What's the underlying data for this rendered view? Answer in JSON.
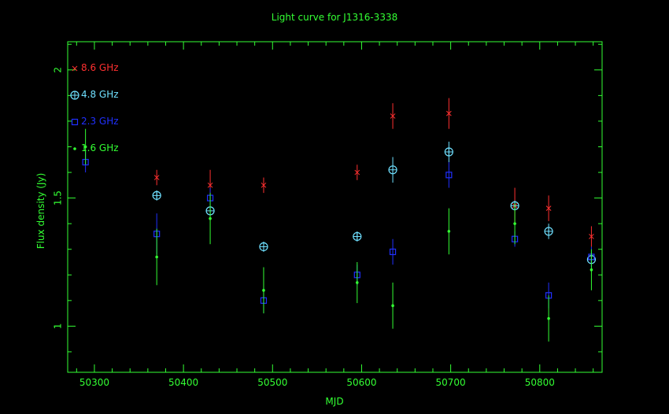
{
  "chart_data": {
    "type": "scatter",
    "title": "Light curve for J1316-3338",
    "xlabel": "MJD",
    "ylabel": "Flux density (Jy)",
    "xlim": [
      50270,
      50870
    ],
    "ylim": [
      0.82,
      2.11
    ],
    "x_ticks_major": [
      50300,
      50400,
      50500,
      50600,
      50700,
      50800
    ],
    "y_ticks_major": [
      1,
      1.5,
      2
    ],
    "x_tick_labels": [
      "50300",
      "50400",
      "50500",
      "50600",
      "50700",
      "50800"
    ],
    "y_tick_labels": [
      "1",
      "1.5",
      "2"
    ],
    "axis_color": "#33ff33",
    "background": "#000000",
    "legend_placement": "top-left",
    "series": [
      {
        "name": "8.6 GHz",
        "marker": "cross",
        "color": "#ff3030",
        "points": [
          {
            "x": 50370,
            "y": 1.58,
            "err": 0.03
          },
          {
            "x": 50430,
            "y": 1.55,
            "err": 0.06
          },
          {
            "x": 50490,
            "y": 1.55,
            "err": 0.03
          },
          {
            "x": 50595,
            "y": 1.6,
            "err": 0.03
          },
          {
            "x": 50635,
            "y": 1.82,
            "err": 0.05
          },
          {
            "x": 50698,
            "y": 1.83,
            "err": 0.06
          },
          {
            "x": 50772,
            "y": 1.47,
            "err": 0.07
          },
          {
            "x": 50810,
            "y": 1.46,
            "err": 0.05
          },
          {
            "x": 50858,
            "y": 1.35,
            "err": 0.04
          }
        ]
      },
      {
        "name": "4.8 GHz",
        "marker": "circle-plus",
        "color": "#6fe0ff",
        "points": [
          {
            "x": 50370,
            "y": 1.51,
            "err": 0.02
          },
          {
            "x": 50430,
            "y": 1.45,
            "err": 0.02
          },
          {
            "x": 50490,
            "y": 1.31,
            "err": 0.02
          },
          {
            "x": 50595,
            "y": 1.35,
            "err": 0.02
          },
          {
            "x": 50635,
            "y": 1.61,
            "err": 0.05
          },
          {
            "x": 50698,
            "y": 1.68,
            "err": 0.04
          },
          {
            "x": 50772,
            "y": 1.47,
            "err": 0.02
          },
          {
            "x": 50810,
            "y": 1.37,
            "err": 0.03
          },
          {
            "x": 50858,
            "y": 1.26,
            "err": 0.03
          }
        ]
      },
      {
        "name": "2.3 GHz",
        "marker": "square",
        "color": "#2030ff",
        "points": [
          {
            "x": 50290,
            "y": 1.64,
            "err": 0.04
          },
          {
            "x": 50370,
            "y": 1.36,
            "err": 0.08
          },
          {
            "x": 50430,
            "y": 1.5,
            "err": 0.04
          },
          {
            "x": 50490,
            "y": 1.1,
            "err": 0.05
          },
          {
            "x": 50595,
            "y": 1.2,
            "err": 0.04
          },
          {
            "x": 50635,
            "y": 1.29,
            "err": 0.05
          },
          {
            "x": 50698,
            "y": 1.59,
            "err": 0.05
          },
          {
            "x": 50772,
            "y": 1.34,
            "err": 0.03
          },
          {
            "x": 50810,
            "y": 1.12,
            "err": 0.05
          },
          {
            "x": 50858,
            "y": 1.27,
            "err": 0.04
          }
        ]
      },
      {
        "name": "1.6 GHz",
        "marker": "dot",
        "color": "#33ff33",
        "points": [
          {
            "x": 50290,
            "y": 1.7,
            "err": 0.07
          },
          {
            "x": 50370,
            "y": 1.27,
            "err": 0.11
          },
          {
            "x": 50430,
            "y": 1.42,
            "err": 0.1
          },
          {
            "x": 50490,
            "y": 1.14,
            "err": 0.09
          },
          {
            "x": 50595,
            "y": 1.17,
            "err": 0.08
          },
          {
            "x": 50635,
            "y": 1.08,
            "err": 0.09
          },
          {
            "x": 50698,
            "y": 1.37,
            "err": 0.09
          },
          {
            "x": 50772,
            "y": 1.4,
            "err": 0.08
          },
          {
            "x": 50810,
            "y": 1.03,
            "err": 0.09
          },
          {
            "x": 50858,
            "y": 1.22,
            "err": 0.08
          }
        ]
      }
    ]
  }
}
